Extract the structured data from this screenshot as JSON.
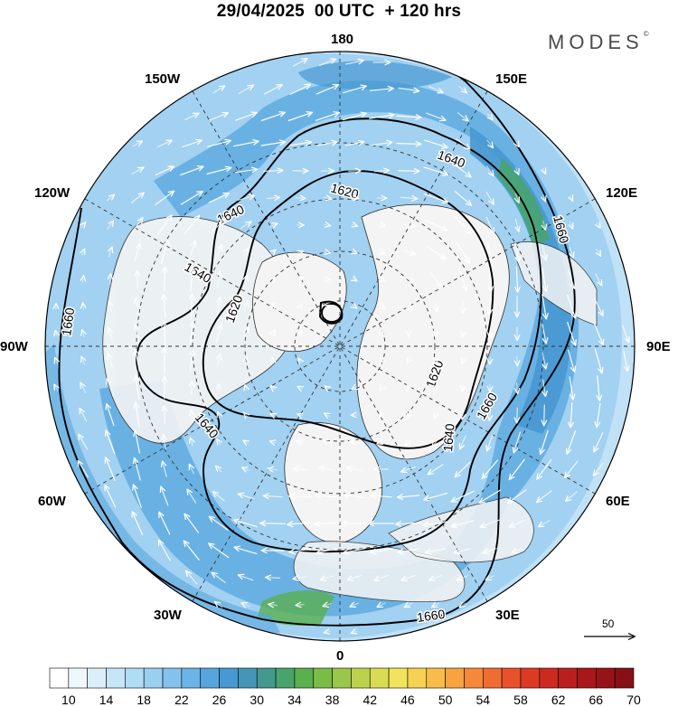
{
  "header": {
    "title": "29/04/2025  00 UTC  + 120 hrs",
    "logo": "MODES"
  },
  "map": {
    "projection": "north-polar-stereographic",
    "longitude_labels": [
      "180",
      "150E",
      "120E",
      "90E",
      "60E",
      "30E",
      "0",
      "30W",
      "60W",
      "90W",
      "120W",
      "150W"
    ],
    "contour_labels": [
      "1620",
      "1620",
      "1620",
      "1640",
      "1640",
      "1640",
      "1640",
      "1640",
      "1660",
      "1660",
      "1660",
      "1660"
    ],
    "wind_reference": {
      "label": "50"
    },
    "colors": {
      "land": "#f4f4f4",
      "coast": "#222222",
      "contour": "#000000"
    }
  },
  "colorbar": {
    "tick_labels": [
      "10",
      "14",
      "18",
      "22",
      "26",
      "30",
      "34",
      "38",
      "42",
      "46",
      "50",
      "54",
      "58",
      "62",
      "66",
      "70"
    ],
    "colors": [
      "#ffffff",
      "#eef7fc",
      "#dbeffa",
      "#c6e6f7",
      "#b0dcf4",
      "#9acff0",
      "#84c2eb",
      "#6cb4e5",
      "#56a5dd",
      "#4898d2",
      "#4596b6",
      "#44998e",
      "#48a46a",
      "#5aaf4f",
      "#7bbc47",
      "#9ac64a",
      "#bcd24e",
      "#d9dc52",
      "#f1e45d",
      "#f6d153",
      "#f8bc4a",
      "#f7a342",
      "#f4893a",
      "#ef6d32",
      "#e8522a",
      "#dd3a24",
      "#cc2a20",
      "#ba1f1d",
      "#a8181a",
      "#961419",
      "#851016"
    ]
  }
}
